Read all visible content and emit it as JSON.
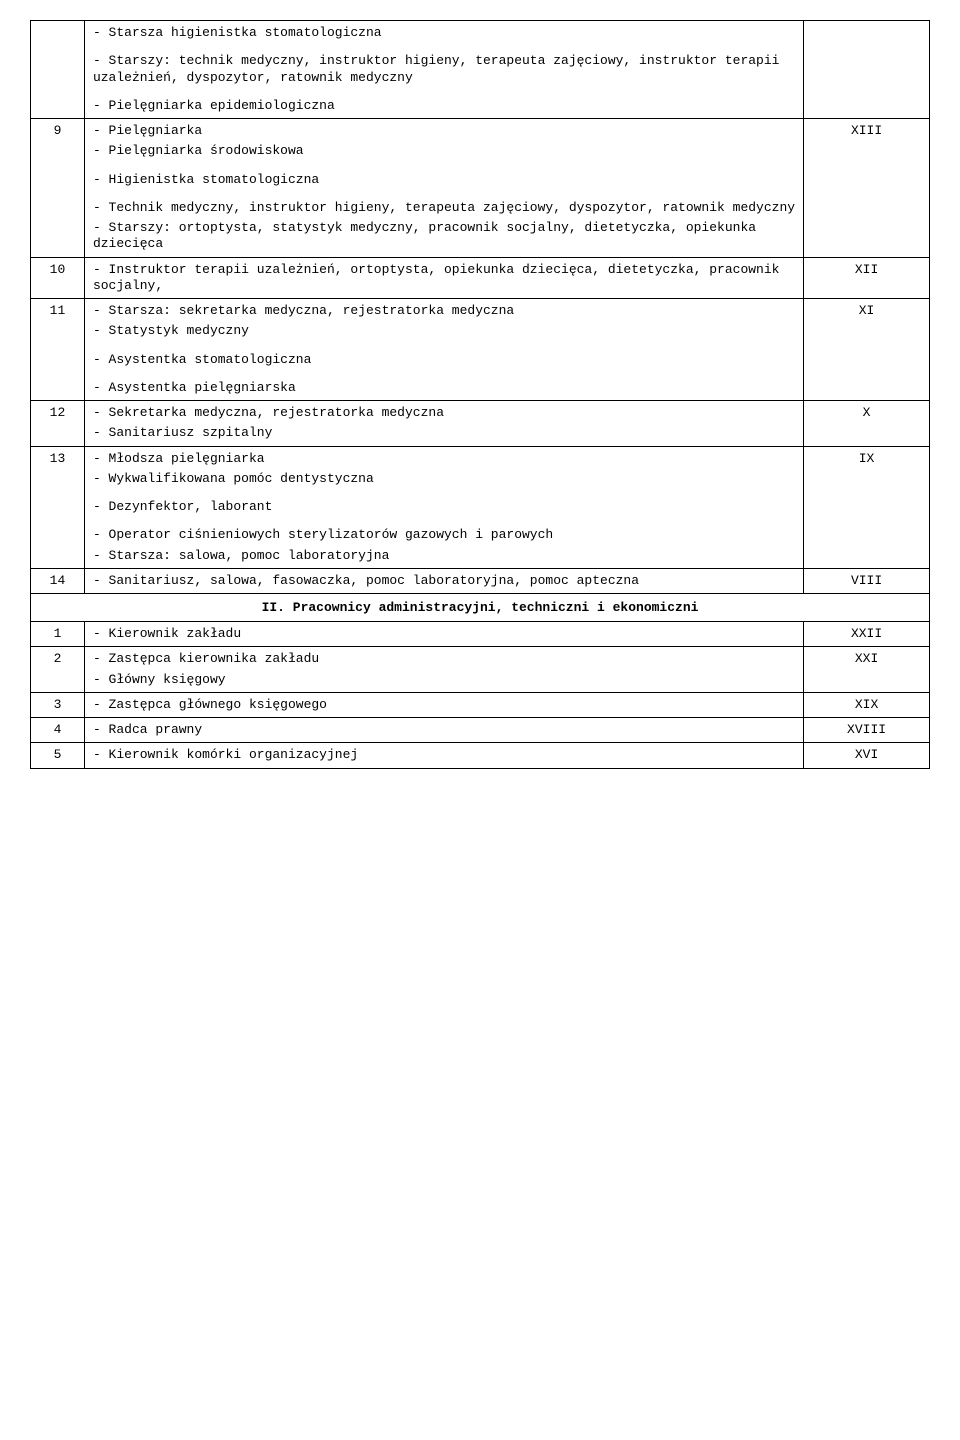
{
  "rows": {
    "pre9": {
      "lines": [
        "- Starsza higienistka stomatologiczna",
        "- Starszy: technik medyczny, instruktor higieny, terapeuta zajęciowy, instruktor terapii uzależnień, dyspozytor, ratownik medyczny",
        "- Pielęgniarka epidemiologiczna"
      ]
    },
    "r9": {
      "num": "9",
      "grade": "XIII",
      "lines": [
        "- Pielęgniarka",
        "- Pielęgniarka środowiskowa",
        "- Higienistka stomatologiczna",
        "- Technik medyczny, instruktor higieny, terapeuta zajęciowy, dyspozytor, ratownik medyczny",
        "- Starszy: ortoptysta, statystyk medyczny, pracownik socjalny, dietetyczka, opiekunka dziecięca"
      ]
    },
    "r10": {
      "num": "10",
      "grade": "XII",
      "lines": [
        "- Instruktor terapii uzależnień, ortoptysta, opiekunka dziecięca, dietetyczka, pracownik socjalny,"
      ]
    },
    "r11": {
      "num": "11",
      "grade": "XI",
      "lines": [
        "- Starsza: sekretarka medyczna, rejestratorka medyczna",
        "- Statystyk medyczny",
        "- Asystentka stomatologiczna",
        "- Asystentka pielęgniarska"
      ]
    },
    "r12": {
      "num": "12",
      "grade": "X",
      "lines": [
        "- Sekretarka medyczna, rejestratorka medyczna",
        "- Sanitariusz szpitalny"
      ]
    },
    "r13": {
      "num": "13",
      "grade": "IX",
      "lines": [
        "- Młodsza pielęgniarka",
        "- Wykwalifikowana pomóc dentystyczna",
        "- Dezynfektor, laborant",
        "- Operator ciśnieniowych sterylizatorów gazowych i parowych",
        "- Starsza: salowa, pomoc laboratoryjna"
      ]
    },
    "r14": {
      "num": "14",
      "grade": "VIII",
      "lines": [
        "- Sanitariusz, salowa, fasowaczka, pomoc laboratoryjna, pomoc apteczna"
      ]
    },
    "section2": {
      "title": "II. Pracownicy administracyjni, techniczni i ekonomiczni"
    },
    "a1": {
      "num": "1",
      "grade": "XXII",
      "lines": [
        "- Kierownik zakładu"
      ]
    },
    "a2": {
      "num": "2",
      "grade": "XXI",
      "lines": [
        "- Zastępca kierownika zakładu",
        "- Główny księgowy"
      ]
    },
    "a3": {
      "num": "3",
      "grade": "XIX",
      "lines": [
        "- Zastępca głównego księgowego"
      ]
    },
    "a4": {
      "num": "4",
      "grade": "XVIII",
      "lines": [
        "- Radca prawny"
      ]
    },
    "a5": {
      "num": "5",
      "grade": "XVI",
      "lines": [
        "- Kierownik komórki organizacyjnej"
      ]
    }
  }
}
